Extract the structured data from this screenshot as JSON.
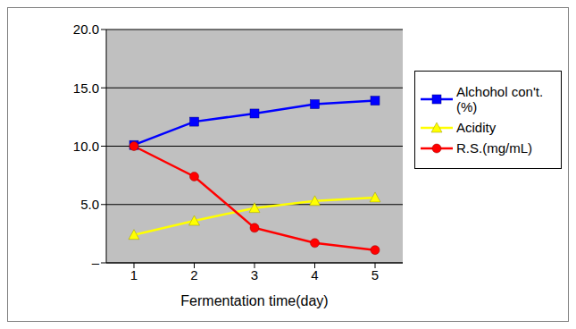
{
  "chart_data": {
    "type": "line",
    "x_label": "Fermentation time(day)",
    "categories": [
      "1",
      "2",
      "3",
      "4",
      "5"
    ],
    "ylim": [
      0,
      20
    ],
    "yticks": [
      {
        "value": 0,
        "label": "–"
      },
      {
        "value": 5,
        "label": "5.0"
      },
      {
        "value": 10,
        "label": "10.0"
      },
      {
        "value": 15,
        "label": "15.0"
      },
      {
        "value": 20,
        "label": "20.0"
      }
    ],
    "grid": true,
    "legend": "right",
    "series": [
      {
        "name": "Alchohol con't.(%)",
        "color": "#0000ff",
        "marker": "square",
        "values": [
          10.1,
          12.1,
          12.8,
          13.6,
          13.9
        ]
      },
      {
        "name": "Acidity",
        "color": "#ffff00",
        "marker": "triangle",
        "values": [
          2.4,
          3.6,
          4.7,
          5.3,
          5.6
        ]
      },
      {
        "name": "R.S.(mg/mL)",
        "color": "#ff0000",
        "marker": "circle",
        "values": [
          10.0,
          7.4,
          3.0,
          1.7,
          1.1
        ]
      }
    ]
  }
}
